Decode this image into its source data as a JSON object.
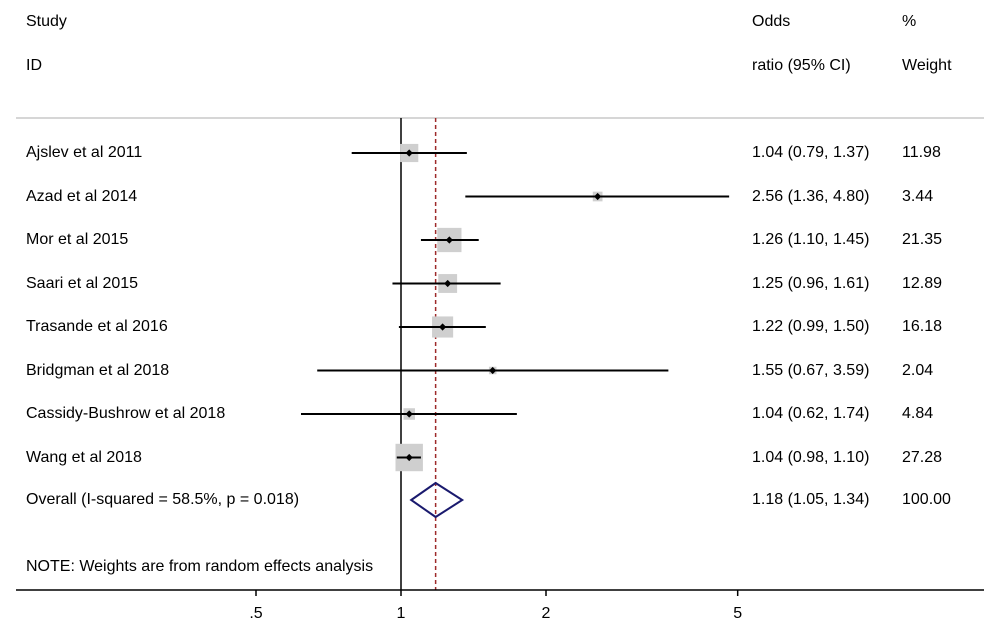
{
  "headers": {
    "study_line1": "Study",
    "study_line2": "ID",
    "or_line1": "Odds",
    "or_line2": "ratio (95% CI)",
    "weight_line1": "%",
    "weight_line2": "Weight"
  },
  "note": "NOTE: Weights are from random effects analysis",
  "chart_data": {
    "type": "forest",
    "x_scale": "log",
    "null_line": 1,
    "pooled_line": 1.18,
    "xticks": [
      {
        "value": 0.5,
        "label": ".5"
      },
      {
        "value": 1,
        "label": "1"
      },
      {
        "value": 2,
        "label": "2"
      },
      {
        "value": 5,
        "label": "5"
      }
    ],
    "studies": [
      {
        "label": "Ajslev et al 2011",
        "or": 1.04,
        "lo": 0.79,
        "hi": 1.37,
        "or_text": "1.04 (0.79, 1.37)",
        "weight": 11.98,
        "weight_text": "11.98"
      },
      {
        "label": "Azad et al 2014",
        "or": 2.56,
        "lo": 1.36,
        "hi": 4.8,
        "or_text": "2.56 (1.36, 4.80)",
        "weight": 3.44,
        "weight_text": "3.44"
      },
      {
        "label": "Mor et al 2015",
        "or": 1.26,
        "lo": 1.1,
        "hi": 1.45,
        "or_text": "1.26 (1.10, 1.45)",
        "weight": 21.35,
        "weight_text": "21.35"
      },
      {
        "label": "Saari et al 2015",
        "or": 1.25,
        "lo": 0.96,
        "hi": 1.61,
        "or_text": "1.25 (0.96, 1.61)",
        "weight": 12.89,
        "weight_text": "12.89"
      },
      {
        "label": "Trasande et al 2016",
        "or": 1.22,
        "lo": 0.99,
        "hi": 1.5,
        "or_text": "1.22 (0.99, 1.50)",
        "weight": 16.18,
        "weight_text": "16.18"
      },
      {
        "label": "Bridgman et al 2018",
        "or": 1.55,
        "lo": 0.67,
        "hi": 3.59,
        "or_text": "1.55 (0.67, 3.59)",
        "weight": 2.04,
        "weight_text": "2.04"
      },
      {
        "label": "Cassidy-Bushrow et al 2018",
        "or": 1.04,
        "lo": 0.62,
        "hi": 1.74,
        "or_text": "1.04 (0.62, 1.74)",
        "weight": 4.84,
        "weight_text": "4.84"
      },
      {
        "label": "Wang et al 2018",
        "or": 1.04,
        "lo": 0.98,
        "hi": 1.1,
        "or_text": "1.04 (0.98, 1.10)",
        "weight": 27.28,
        "weight_text": "27.28"
      }
    ],
    "overall": {
      "label": "Overall  (I-squared = 58.5%, p = 0.018)",
      "or": 1.18,
      "lo": 1.05,
      "hi": 1.34,
      "or_text": "1.18 (1.05, 1.34)",
      "weight_text": "100.00"
    },
    "colors": {
      "box": "#cfcfcf",
      "diamond": "#1a1a6e",
      "pooled_line": "#9e2a2a",
      "line": "#000000"
    }
  }
}
